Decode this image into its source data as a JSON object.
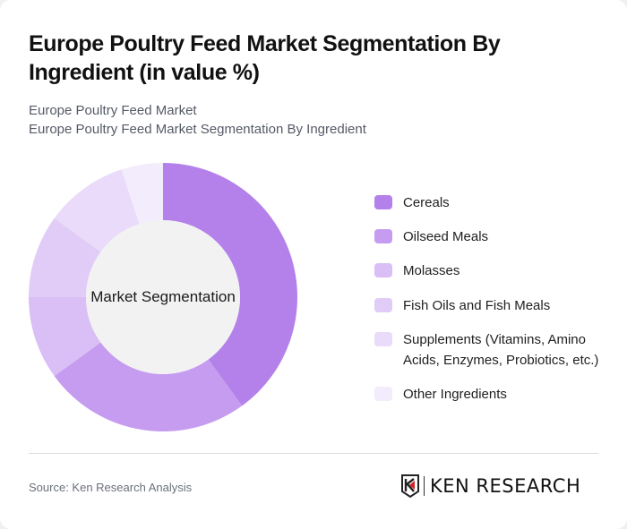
{
  "header": {
    "title": "Europe Poultry Feed Market Segmentation By Ingredient (in value %)",
    "subtitle_line1": "Europe Poultry Feed Market",
    "subtitle_line2": "Europe Poultry Feed Market Segmentation By Ingredient"
  },
  "chart": {
    "center_label": "Market Segmentation"
  },
  "legend": {
    "items": [
      {
        "label": "Cereals",
        "color": "#b481ea"
      },
      {
        "label": "Oilseed Meals",
        "color": "#c69cf0"
      },
      {
        "label": "Molasses",
        "color": "#d9bff5"
      },
      {
        "label": "Fish Oils and Fish Meals",
        "color": "#e0ccf6"
      },
      {
        "label": "Supplements (Vitamins, Amino Acids, Enzymes, Probiotics, etc.)",
        "color": "#e9dbf9"
      },
      {
        "label": "Other Ingredients",
        "color": "#f3ecfc"
      }
    ]
  },
  "footer": {
    "source": "Source: Ken Research Analysis",
    "logo_text": "KEN RESEARCH",
    "logo_icon": "k-shield-logo-icon"
  },
  "chart_data": {
    "type": "pie",
    "title": "Europe Poultry Feed Market Segmentation By Ingredient (in value %)",
    "subtitle": "Europe Poultry Feed Market Segmentation By Ingredient",
    "center_label": "Market Segmentation",
    "donut": true,
    "categories": [
      "Cereals",
      "Oilseed Meals",
      "Molasses",
      "Fish Oils and Fish Meals",
      "Supplements (Vitamins, Amino Acids, Enzymes, Probiotics, etc.)",
      "Other Ingredients"
    ],
    "values": [
      40,
      25,
      10,
      10,
      10,
      5
    ],
    "colors": [
      "#b481ea",
      "#c69cf0",
      "#d9bff5",
      "#e0ccf6",
      "#e9dbf9",
      "#f3ecfc"
    ],
    "unit": "%",
    "legend_position": "right",
    "source": "Source: Ken Research Analysis"
  }
}
